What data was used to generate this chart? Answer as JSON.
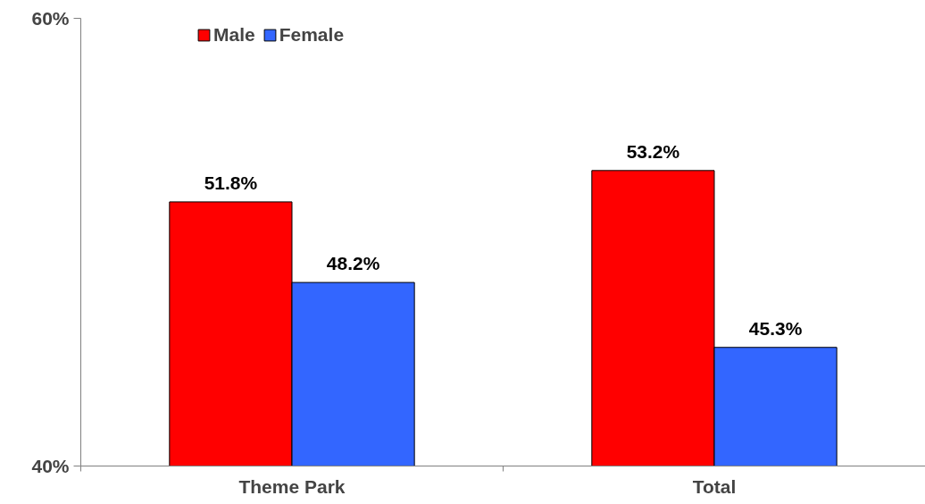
{
  "chart_data": {
    "type": "bar",
    "categories": [
      "Theme Park",
      "Total"
    ],
    "series": [
      {
        "name": "Male",
        "color": "#ff0000",
        "values": [
          51.8,
          53.2
        ],
        "value_labels": [
          "51.8%",
          "53.2%"
        ]
      },
      {
        "name": "Female",
        "color": "#3366ff",
        "values": [
          48.2,
          45.3
        ],
        "value_labels": [
          "48.2%",
          "45.3%"
        ]
      }
    ],
    "ylim": [
      40,
      60
    ],
    "yticks": [
      {
        "value": 40,
        "label": "40%"
      },
      {
        "value": 60,
        "label": "60%"
      }
    ],
    "grid": false,
    "legend": "top left"
  }
}
